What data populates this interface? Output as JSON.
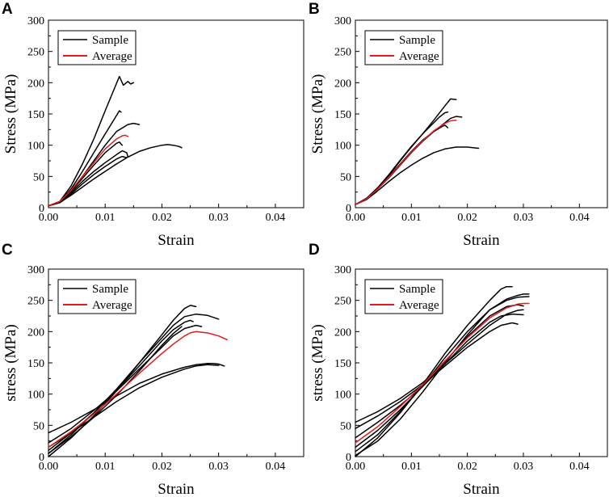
{
  "chart_data": [
    {
      "panel": "A",
      "type": "line",
      "xlabel": "Strain",
      "ylabel": "Stress (MPa)",
      "xlim": [
        0,
        0.045
      ],
      "ylim": [
        0,
        300
      ],
      "xticks": [
        "0.00",
        "0.01",
        "0.02",
        "0.03",
        "0.04"
      ],
      "yticks": [
        "0",
        "50",
        "100",
        "150",
        "200",
        "250",
        "300"
      ],
      "legend": [
        {
          "label": "Sample",
          "color": "#000000"
        },
        {
          "label": "Average",
          "color": "#e41a1c"
        }
      ],
      "series": [
        {
          "name": "Sample",
          "color": "#000000",
          "x": [
            0,
            0.002,
            0.004,
            0.006,
            0.008,
            0.01,
            0.0125,
            0.0132,
            0.014,
            0.0145,
            0.015
          ],
          "y": [
            3,
            10,
            35,
            70,
            110,
            155,
            210,
            196,
            202,
            198,
            200
          ]
        },
        {
          "name": "Sample",
          "color": "#000000",
          "x": [
            0,
            0.002,
            0.004,
            0.006,
            0.008,
            0.01,
            0.0125,
            0.0128
          ],
          "y": [
            3,
            10,
            30,
            58,
            88,
            118,
            155,
            153
          ]
        },
        {
          "name": "Sample",
          "color": "#000000",
          "x": [
            0,
            0.002,
            0.004,
            0.006,
            0.008,
            0.01,
            0.012,
            0.014,
            0.015,
            0.016
          ],
          "y": [
            3,
            9,
            27,
            50,
            75,
            100,
            122,
            133,
            135,
            133
          ]
        },
        {
          "name": "Sample",
          "color": "#000000",
          "x": [
            0,
            0.002,
            0.004,
            0.006,
            0.008,
            0.01,
            0.012,
            0.0125,
            0.013
          ],
          "y": [
            3,
            9,
            26,
            47,
            68,
            88,
            103,
            105,
            100
          ]
        },
        {
          "name": "Sample",
          "color": "#000000",
          "x": [
            0,
            0.002,
            0.004,
            0.006,
            0.008,
            0.01,
            0.012,
            0.013,
            0.0138,
            0.014
          ],
          "y": [
            3,
            9,
            24,
            42,
            58,
            72,
            85,
            91,
            88,
            82
          ]
        },
        {
          "name": "Sample",
          "color": "#000000",
          "x": [
            0,
            0.002,
            0.004,
            0.006,
            0.008,
            0.01,
            0.012,
            0.013,
            0.0138
          ],
          "y": [
            3,
            8,
            22,
            38,
            53,
            66,
            78,
            82,
            80
          ]
        },
        {
          "name": "Sample",
          "color": "#000000",
          "x": [
            0,
            0.002,
            0.004,
            0.006,
            0.008,
            0.01,
            0.012,
            0.014,
            0.016,
            0.018,
            0.02,
            0.021,
            0.022,
            0.023,
            0.0235
          ],
          "y": [
            3,
            8,
            20,
            33,
            46,
            58,
            70,
            81,
            90,
            96,
            100,
            101,
            100,
            98,
            96
          ]
        },
        {
          "name": "Average",
          "color": "#e41a1c",
          "x": [
            0,
            0.002,
            0.004,
            0.006,
            0.008,
            0.01,
            0.012,
            0.013,
            0.0135,
            0.014
          ],
          "y": [
            3,
            10,
            28,
            50,
            72,
            94,
            110,
            115,
            116,
            114
          ]
        }
      ]
    },
    {
      "panel": "B",
      "type": "line",
      "xlabel": "Strain",
      "ylabel": "Stress (MPa)",
      "xlim": [
        0,
        0.045
      ],
      "ylim": [
        0,
        300
      ],
      "xticks": [
        "0.00",
        "0.01",
        "0.02",
        "0.03",
        "0.04"
      ],
      "yticks": [
        "0",
        "50",
        "100",
        "150",
        "200",
        "250",
        "300"
      ],
      "legend": [
        {
          "label": "Sample",
          "color": "#000000"
        },
        {
          "label": "Average",
          "color": "#e41a1c"
        }
      ],
      "series": [
        {
          "name": "Sample",
          "color": "#000000",
          "x": [
            0,
            0.002,
            0.004,
            0.006,
            0.008,
            0.01,
            0.012,
            0.014,
            0.016,
            0.017,
            0.018
          ],
          "y": [
            5,
            15,
            32,
            52,
            75,
            97,
            118,
            140,
            163,
            174,
            173
          ]
        },
        {
          "name": "Sample",
          "color": "#000000",
          "x": [
            0,
            0.002,
            0.004,
            0.006,
            0.008,
            0.01,
            0.012,
            0.014,
            0.015,
            0.016,
            0.0165
          ],
          "y": [
            5,
            15,
            32,
            53,
            76,
            98,
            118,
            136,
            145,
            152,
            153
          ]
        },
        {
          "name": "Sample",
          "color": "#000000",
          "x": [
            0,
            0.002,
            0.004,
            0.006,
            0.008,
            0.01,
            0.012,
            0.014,
            0.016,
            0.017,
            0.018,
            0.019
          ],
          "y": [
            5,
            14,
            30,
            48,
            68,
            88,
            106,
            122,
            136,
            143,
            146,
            145
          ]
        },
        {
          "name": "Sample",
          "color": "#000000",
          "x": [
            0,
            0.002,
            0.004,
            0.006,
            0.008,
            0.01,
            0.012,
            0.014,
            0.0155,
            0.016,
            0.0165
          ],
          "y": [
            5,
            15,
            31,
            50,
            70,
            90,
            108,
            122,
            130,
            132,
            128
          ]
        },
        {
          "name": "Sample",
          "color": "#000000",
          "x": [
            0,
            0.002,
            0.004,
            0.006,
            0.008,
            0.01,
            0.012,
            0.014,
            0.016,
            0.018,
            0.02,
            0.022
          ],
          "y": [
            5,
            13,
            27,
            42,
            56,
            68,
            79,
            88,
            94,
            97,
            97,
            95
          ]
        },
        {
          "name": "Average",
          "color": "#e41a1c",
          "x": [
            0,
            0.002,
            0.004,
            0.006,
            0.008,
            0.01,
            0.012,
            0.014,
            0.016,
            0.017,
            0.018
          ],
          "y": [
            5,
            14,
            30,
            49,
            69,
            89,
            107,
            123,
            135,
            139,
            140
          ]
        }
      ]
    },
    {
      "panel": "C",
      "type": "line",
      "xlabel": "Strain",
      "ylabel": "stress (MPa)",
      "xlim": [
        0,
        0.045
      ],
      "ylim": [
        0,
        300
      ],
      "xticks": [
        "0.00",
        "0.01",
        "0.02",
        "0.03",
        "0.04"
      ],
      "yticks": [
        "0",
        "50",
        "100",
        "150",
        "200",
        "250",
        "300"
      ],
      "legend": [
        {
          "label": "Sample",
          "color": "#000000"
        },
        {
          "label": "Average",
          "color": "#e41a1c"
        }
      ],
      "series": [
        {
          "name": "Sample",
          "color": "#000000",
          "x": [
            0,
            0.004,
            0.008,
            0.012,
            0.016,
            0.02,
            0.022,
            0.024,
            0.025,
            0.026
          ],
          "y": [
            0,
            30,
            65,
            105,
            150,
            195,
            218,
            237,
            242,
            240
          ]
        },
        {
          "name": "Sample",
          "color": "#000000",
          "x": [
            0,
            0.004,
            0.008,
            0.012,
            0.016,
            0.02,
            0.022,
            0.024,
            0.026,
            0.028,
            0.03
          ],
          "y": [
            5,
            35,
            70,
            108,
            150,
            190,
            210,
            224,
            228,
            226,
            220
          ]
        },
        {
          "name": "Sample",
          "color": "#000000",
          "x": [
            0,
            0.004,
            0.008,
            0.012,
            0.016,
            0.02,
            0.022,
            0.024,
            0.025,
            0.0255
          ],
          "y": [
            10,
            38,
            70,
            106,
            145,
            185,
            203,
            215,
            218,
            216
          ]
        },
        {
          "name": "Sample",
          "color": "#000000",
          "x": [
            0,
            0.004,
            0.008,
            0.012,
            0.016,
            0.02,
            0.022,
            0.024,
            0.026,
            0.027
          ],
          "y": [
            22,
            45,
            74,
            105,
            140,
            175,
            193,
            205,
            210,
            208
          ]
        },
        {
          "name": "Sample",
          "color": "#000000",
          "x": [
            0,
            0.004,
            0.008,
            0.012,
            0.016,
            0.02,
            0.022,
            0.0235
          ],
          "y": [
            5,
            32,
            63,
            98,
            137,
            178,
            197,
            208
          ]
        },
        {
          "name": "Sample",
          "color": "#000000",
          "x": [
            0,
            0.004,
            0.008,
            0.012,
            0.016,
            0.02,
            0.024,
            0.026,
            0.028,
            0.029,
            0.03,
            0.031
          ],
          "y": [
            38,
            55,
            75,
            97,
            117,
            132,
            143,
            147,
            149,
            149,
            148,
            145
          ]
        },
        {
          "name": "Sample",
          "color": "#000000",
          "x": [
            0,
            0.004,
            0.008,
            0.012,
            0.016,
            0.02,
            0.024,
            0.026,
            0.028,
            0.03
          ],
          "y": [
            15,
            38,
            63,
            88,
            110,
            127,
            140,
            145,
            147,
            146
          ]
        },
        {
          "name": "Average",
          "color": "#e41a1c",
          "x": [
            0,
            0.004,
            0.008,
            0.012,
            0.016,
            0.02,
            0.022,
            0.024,
            0.025,
            0.026,
            0.028,
            0.03,
            0.0315
          ],
          "y": [
            15,
            40,
            68,
            100,
            133,
            165,
            180,
            193,
            198,
            200,
            198,
            193,
            187
          ]
        }
      ]
    },
    {
      "panel": "D",
      "type": "line",
      "xlabel": "Strain",
      "ylabel": "stress (MPa)",
      "xlim": [
        0,
        0.045
      ],
      "ylim": [
        0,
        300
      ],
      "xticks": [
        "0.00",
        "0.01",
        "0.02",
        "0.03",
        "0.04"
      ],
      "yticks": [
        "0",
        "50",
        "100",
        "150",
        "200",
        "250",
        "300"
      ],
      "legend": [
        {
          "label": "Sample",
          "color": "#000000"
        },
        {
          "label": "Average",
          "color": "#e41a1c"
        }
      ],
      "series": [
        {
          "name": "Sample",
          "color": "#000000",
          "x": [
            0,
            0.004,
            0.008,
            0.012,
            0.016,
            0.02,
            0.024,
            0.026,
            0.027,
            0.028
          ],
          "y": [
            0,
            30,
            70,
            115,
            165,
            210,
            250,
            268,
            272,
            272
          ]
        },
        {
          "name": "Sample",
          "color": "#000000",
          "x": [
            0,
            0.004,
            0.008,
            0.012,
            0.016,
            0.02,
            0.024,
            0.027,
            0.029,
            0.03,
            0.031
          ],
          "y": [
            8,
            35,
            72,
            113,
            158,
            200,
            235,
            252,
            258,
            260,
            260
          ]
        },
        {
          "name": "Sample",
          "color": "#000000",
          "x": [
            0,
            0.004,
            0.008,
            0.012,
            0.016,
            0.02,
            0.024,
            0.027,
            0.029,
            0.03
          ],
          "y": [
            15,
            42,
            75,
            112,
            152,
            192,
            225,
            240,
            243,
            241
          ]
        },
        {
          "name": "Sample",
          "color": "#000000",
          "x": [
            0,
            0.004,
            0.008,
            0.012,
            0.016,
            0.02,
            0.024,
            0.026,
            0.028,
            0.03
          ],
          "y": [
            30,
            55,
            82,
            112,
            148,
            185,
            215,
            225,
            228,
            227
          ]
        },
        {
          "name": "Sample",
          "color": "#000000",
          "x": [
            0,
            0.004,
            0.008,
            0.012,
            0.016,
            0.02,
            0.024,
            0.026,
            0.028,
            0.029
          ],
          "y": [
            45,
            65,
            88,
            115,
            145,
            175,
            200,
            210,
            214,
            212
          ]
        },
        {
          "name": "Sample",
          "color": "#000000",
          "x": [
            0,
            0.004,
            0.008,
            0.012,
            0.016,
            0.02,
            0.024,
            0.027,
            0.029,
            0.03
          ],
          "y": [
            55,
            72,
            93,
            118,
            148,
            180,
            210,
            228,
            234,
            235
          ]
        },
        {
          "name": "Sample",
          "color": "#000000",
          "x": [
            0,
            0.004,
            0.008,
            0.012,
            0.016,
            0.02,
            0.024,
            0.027,
            0.029,
            0.031
          ],
          "y": [
            2,
            25,
            60,
            103,
            150,
            195,
            235,
            250,
            255,
            256
          ]
        },
        {
          "name": "Average",
          "color": "#e41a1c",
          "x": [
            0,
            0.004,
            0.008,
            0.012,
            0.016,
            0.02,
            0.024,
            0.027,
            0.029,
            0.03,
            0.031
          ],
          "y": [
            22,
            48,
            80,
            115,
            153,
            190,
            222,
            238,
            244,
            245,
            245
          ]
        }
      ]
    }
  ]
}
